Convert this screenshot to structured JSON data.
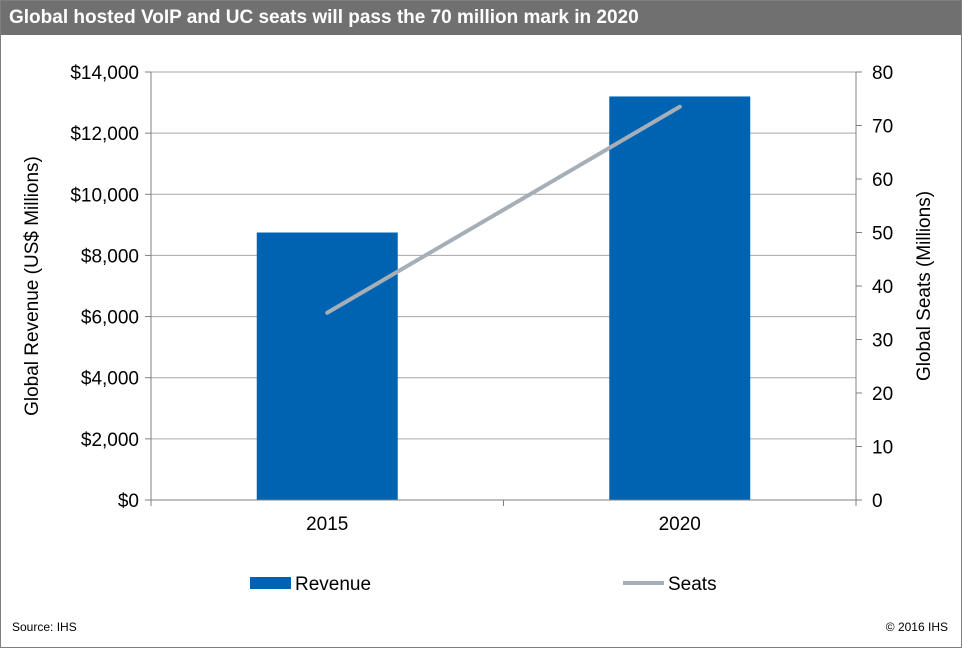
{
  "title": "Global hosted VoIP and UC seats will pass the 70 million mark in 2020",
  "source": "Source: IHS",
  "copyright": "© 2016 IHS",
  "colors": {
    "bar": "#0063B1",
    "line": "#A6AFB7",
    "header": "#707070",
    "grid": "#a6a6a6"
  },
  "chart_data": {
    "type": "bar",
    "categories": [
      "2015",
      "2020"
    ],
    "series": [
      {
        "name": "Revenue",
        "type": "bar",
        "axis": "left",
        "values": [
          8750,
          13200
        ]
      },
      {
        "name": "Seats",
        "type": "line",
        "axis": "right",
        "values": [
          35,
          73.5
        ]
      }
    ],
    "ylabel": "Global Revenue (US$ Millions)",
    "y2label": "Global Seats (Millions)",
    "ylim": [
      0,
      14000
    ],
    "y2lim": [
      0,
      80
    ],
    "yticks": [
      "$0",
      "$2,000",
      "$4,000",
      "$6,000",
      "$8,000",
      "$10,000",
      "$12,000",
      "$14,000"
    ],
    "y2ticks": [
      "0",
      "10",
      "20",
      "30",
      "40",
      "50",
      "60",
      "70",
      "80"
    ],
    "grid": true,
    "legend": "bottom"
  }
}
